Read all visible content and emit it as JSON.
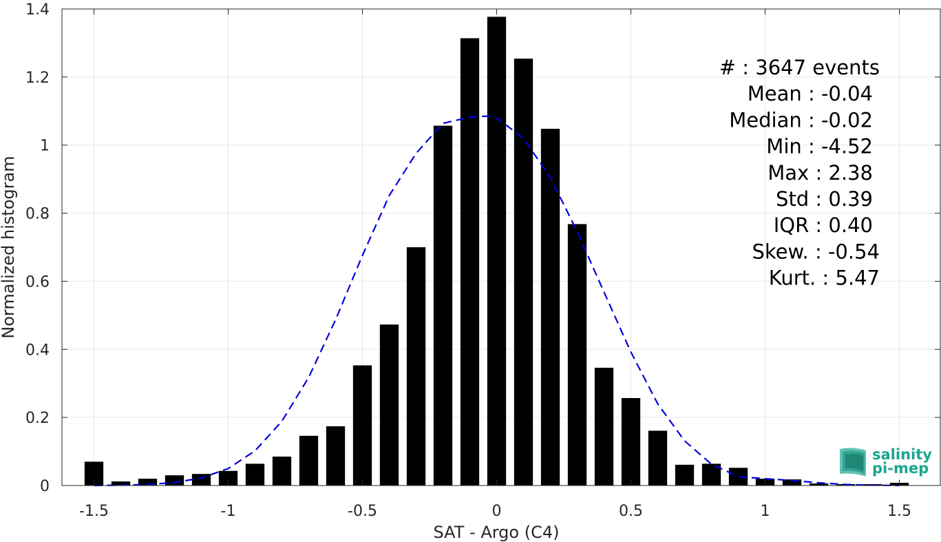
{
  "chart_data": {
    "type": "bar",
    "xlabel": "SAT - Argo (C4)",
    "ylabel": "Normalized histogram",
    "xlim": [
      -1.6,
      1.6
    ],
    "ylim": [
      0,
      1.4
    ],
    "xticks": [
      -1.5,
      -1,
      -0.5,
      0,
      0.5,
      1,
      1.5
    ],
    "xtick_labels": [
      "-1.5",
      "-1",
      "-0.5",
      "0",
      "0.5",
      "1",
      "1.5"
    ],
    "yticks": [
      0,
      0.2,
      0.4,
      0.6,
      0.8,
      1,
      1.2,
      1.4
    ],
    "ytick_labels": [
      "0",
      "0.2",
      "0.4",
      "0.6",
      "0.8",
      "1",
      "1.2",
      "1.4"
    ],
    "grid": true,
    "bar_color": "#000000",
    "bars": {
      "x": [
        -1.5,
        -1.4,
        -1.3,
        -1.2,
        -1.1,
        -1.0,
        -0.9,
        -0.8,
        -0.7,
        -0.6,
        -0.5,
        -0.4,
        -0.3,
        -0.2,
        -0.1,
        0.0,
        0.1,
        0.2,
        0.3,
        0.4,
        0.5,
        0.6,
        0.7,
        0.8,
        0.9,
        1.0,
        1.1,
        1.2,
        1.3,
        1.4,
        1.5
      ],
      "values": [
        0.07,
        0.012,
        0.02,
        0.03,
        0.034,
        0.043,
        0.064,
        0.085,
        0.146,
        0.174,
        0.353,
        0.473,
        0.7,
        1.057,
        1.314,
        1.377,
        1.254,
        1.048,
        0.768,
        0.346,
        0.257,
        0.161,
        0.061,
        0.064,
        0.052,
        0.02,
        0.018,
        0.006,
        0.004,
        0.004,
        0.008
      ]
    },
    "fit_curve": {
      "style": "dashed",
      "color": "#0000e0",
      "x": [
        -1.5,
        -1.4,
        -1.3,
        -1.2,
        -1.1,
        -1.0,
        -0.9,
        -0.8,
        -0.7,
        -0.6,
        -0.5,
        -0.4,
        -0.3,
        -0.2,
        -0.1,
        -0.04,
        0.0,
        0.1,
        0.2,
        0.3,
        0.4,
        0.5,
        0.6,
        0.7,
        0.8,
        0.9,
        1.0,
        1.1,
        1.2,
        1.3,
        1.4,
        1.5
      ],
      "y": [
        0.0,
        0.001,
        0.003,
        0.009,
        0.022,
        0.05,
        0.102,
        0.189,
        0.318,
        0.487,
        0.676,
        0.852,
        0.976,
        1.064,
        1.082,
        1.085,
        1.08,
        1.02,
        0.905,
        0.746,
        0.568,
        0.392,
        0.24,
        0.131,
        0.063,
        0.026,
        0.02,
        0.015,
        0.008,
        0.003,
        0.001,
        0.0
      ]
    },
    "annotations": [
      "#  : 3647 events",
      "Mean : -0.04",
      "Median : -0.02",
      "Min : -4.52",
      "Max : 2.38",
      "Std : 0.39",
      "IQR : 0.40",
      "Skew. : -0.54",
      "Kurt. : 5.47"
    ]
  },
  "logo": {
    "line1": "salinity",
    "line2": "pi-mep",
    "color": "#1aa58f"
  }
}
